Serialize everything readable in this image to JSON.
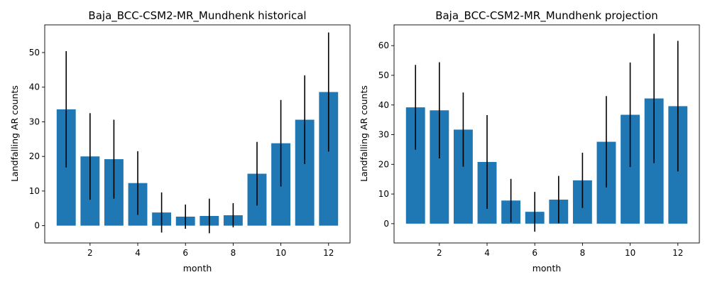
{
  "chart_data": [
    {
      "type": "bar",
      "title": "Baja_BCC-CSM2-MR_Mundhenk historical",
      "xlabel": "month",
      "ylabel": "Landfalling AR counts",
      "color": "#1f77b4",
      "errorbar_color": "#000000",
      "xlim": [
        0.1,
        12.9
      ],
      "ylim": [
        -5,
        58
      ],
      "xticks": [
        2,
        4,
        6,
        8,
        10,
        12
      ],
      "yticks": [
        0,
        10,
        20,
        30,
        40,
        50
      ],
      "x": [
        1,
        2,
        3,
        4,
        5,
        6,
        7,
        8,
        9,
        10,
        11,
        12
      ],
      "values": [
        33.6,
        20.0,
        19.2,
        12.3,
        3.8,
        2.6,
        2.8,
        3.0,
        15.0,
        23.8,
        30.6,
        38.6
      ],
      "errors": [
        16.8,
        12.5,
        11.4,
        9.2,
        5.8,
        3.5,
        5.0,
        3.5,
        9.2,
        12.5,
        12.8,
        17.2
      ]
    },
    {
      "type": "bar",
      "title": "Baja_BCC-CSM2-MR_Mundhenk projection",
      "xlabel": "month",
      "ylabel": "Landfalling AR counts",
      "color": "#1f77b4",
      "errorbar_color": "#000000",
      "xlim": [
        0.1,
        12.9
      ],
      "ylim": [
        -6.5,
        67
      ],
      "xticks": [
        2,
        4,
        6,
        8,
        10,
        12
      ],
      "yticks": [
        0,
        10,
        20,
        30,
        40,
        50,
        60
      ],
      "x": [
        1,
        2,
        3,
        4,
        5,
        6,
        7,
        8,
        9,
        10,
        11,
        12
      ],
      "values": [
        39.2,
        38.2,
        31.7,
        20.8,
        7.8,
        4.0,
        8.1,
        14.6,
        27.6,
        36.7,
        42.2,
        39.6
      ],
      "errors": [
        14.3,
        16.2,
        12.5,
        15.8,
        7.3,
        6.7,
        8.0,
        9.3,
        15.4,
        17.6,
        21.8,
        22.0
      ]
    }
  ]
}
